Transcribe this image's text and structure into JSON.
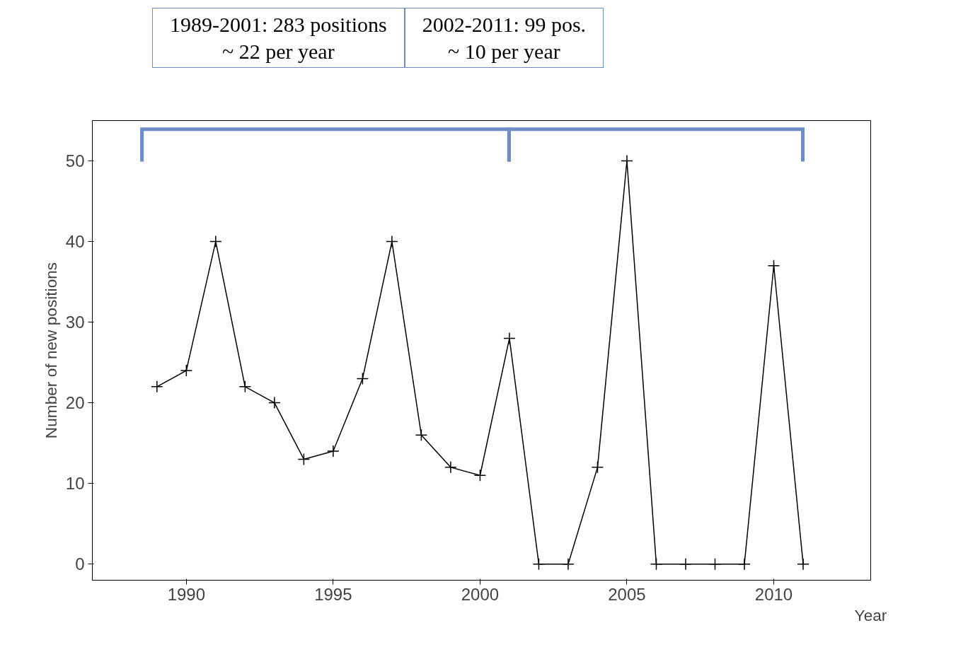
{
  "chart_data": {
    "type": "line",
    "xlabel": "Year",
    "ylabel": "Number of new positions",
    "x": [
      1989,
      1990,
      1991,
      1992,
      1993,
      1994,
      1995,
      1996,
      1997,
      1998,
      1999,
      2000,
      2001,
      2002,
      2003,
      2004,
      2005,
      2006,
      2007,
      2008,
      2009,
      2010,
      2011
    ],
    "series": [
      {
        "color": "#000000",
        "values": [
          22,
          24,
          40,
          22,
          20,
          13,
          14,
          23,
          40,
          16,
          12,
          11,
          28,
          0,
          0,
          12,
          50,
          0,
          0,
          0,
          0,
          37,
          0
        ]
      }
    ],
    "xlim": [
      1986.8,
      2013.3
    ],
    "ylim": [
      -2,
      55
    ],
    "xticks": [
      1990,
      1995,
      2000,
      2005,
      2010
    ],
    "yticks": [
      0,
      10,
      20,
      30,
      40,
      50
    ],
    "marker": "cross",
    "line_style": "solid",
    "grid": false,
    "annotations": [
      "1989-2001: 283 positions\n~ 22 per year",
      "2002-2011: 99 pos.\n~ 10 per year"
    ]
  }
}
